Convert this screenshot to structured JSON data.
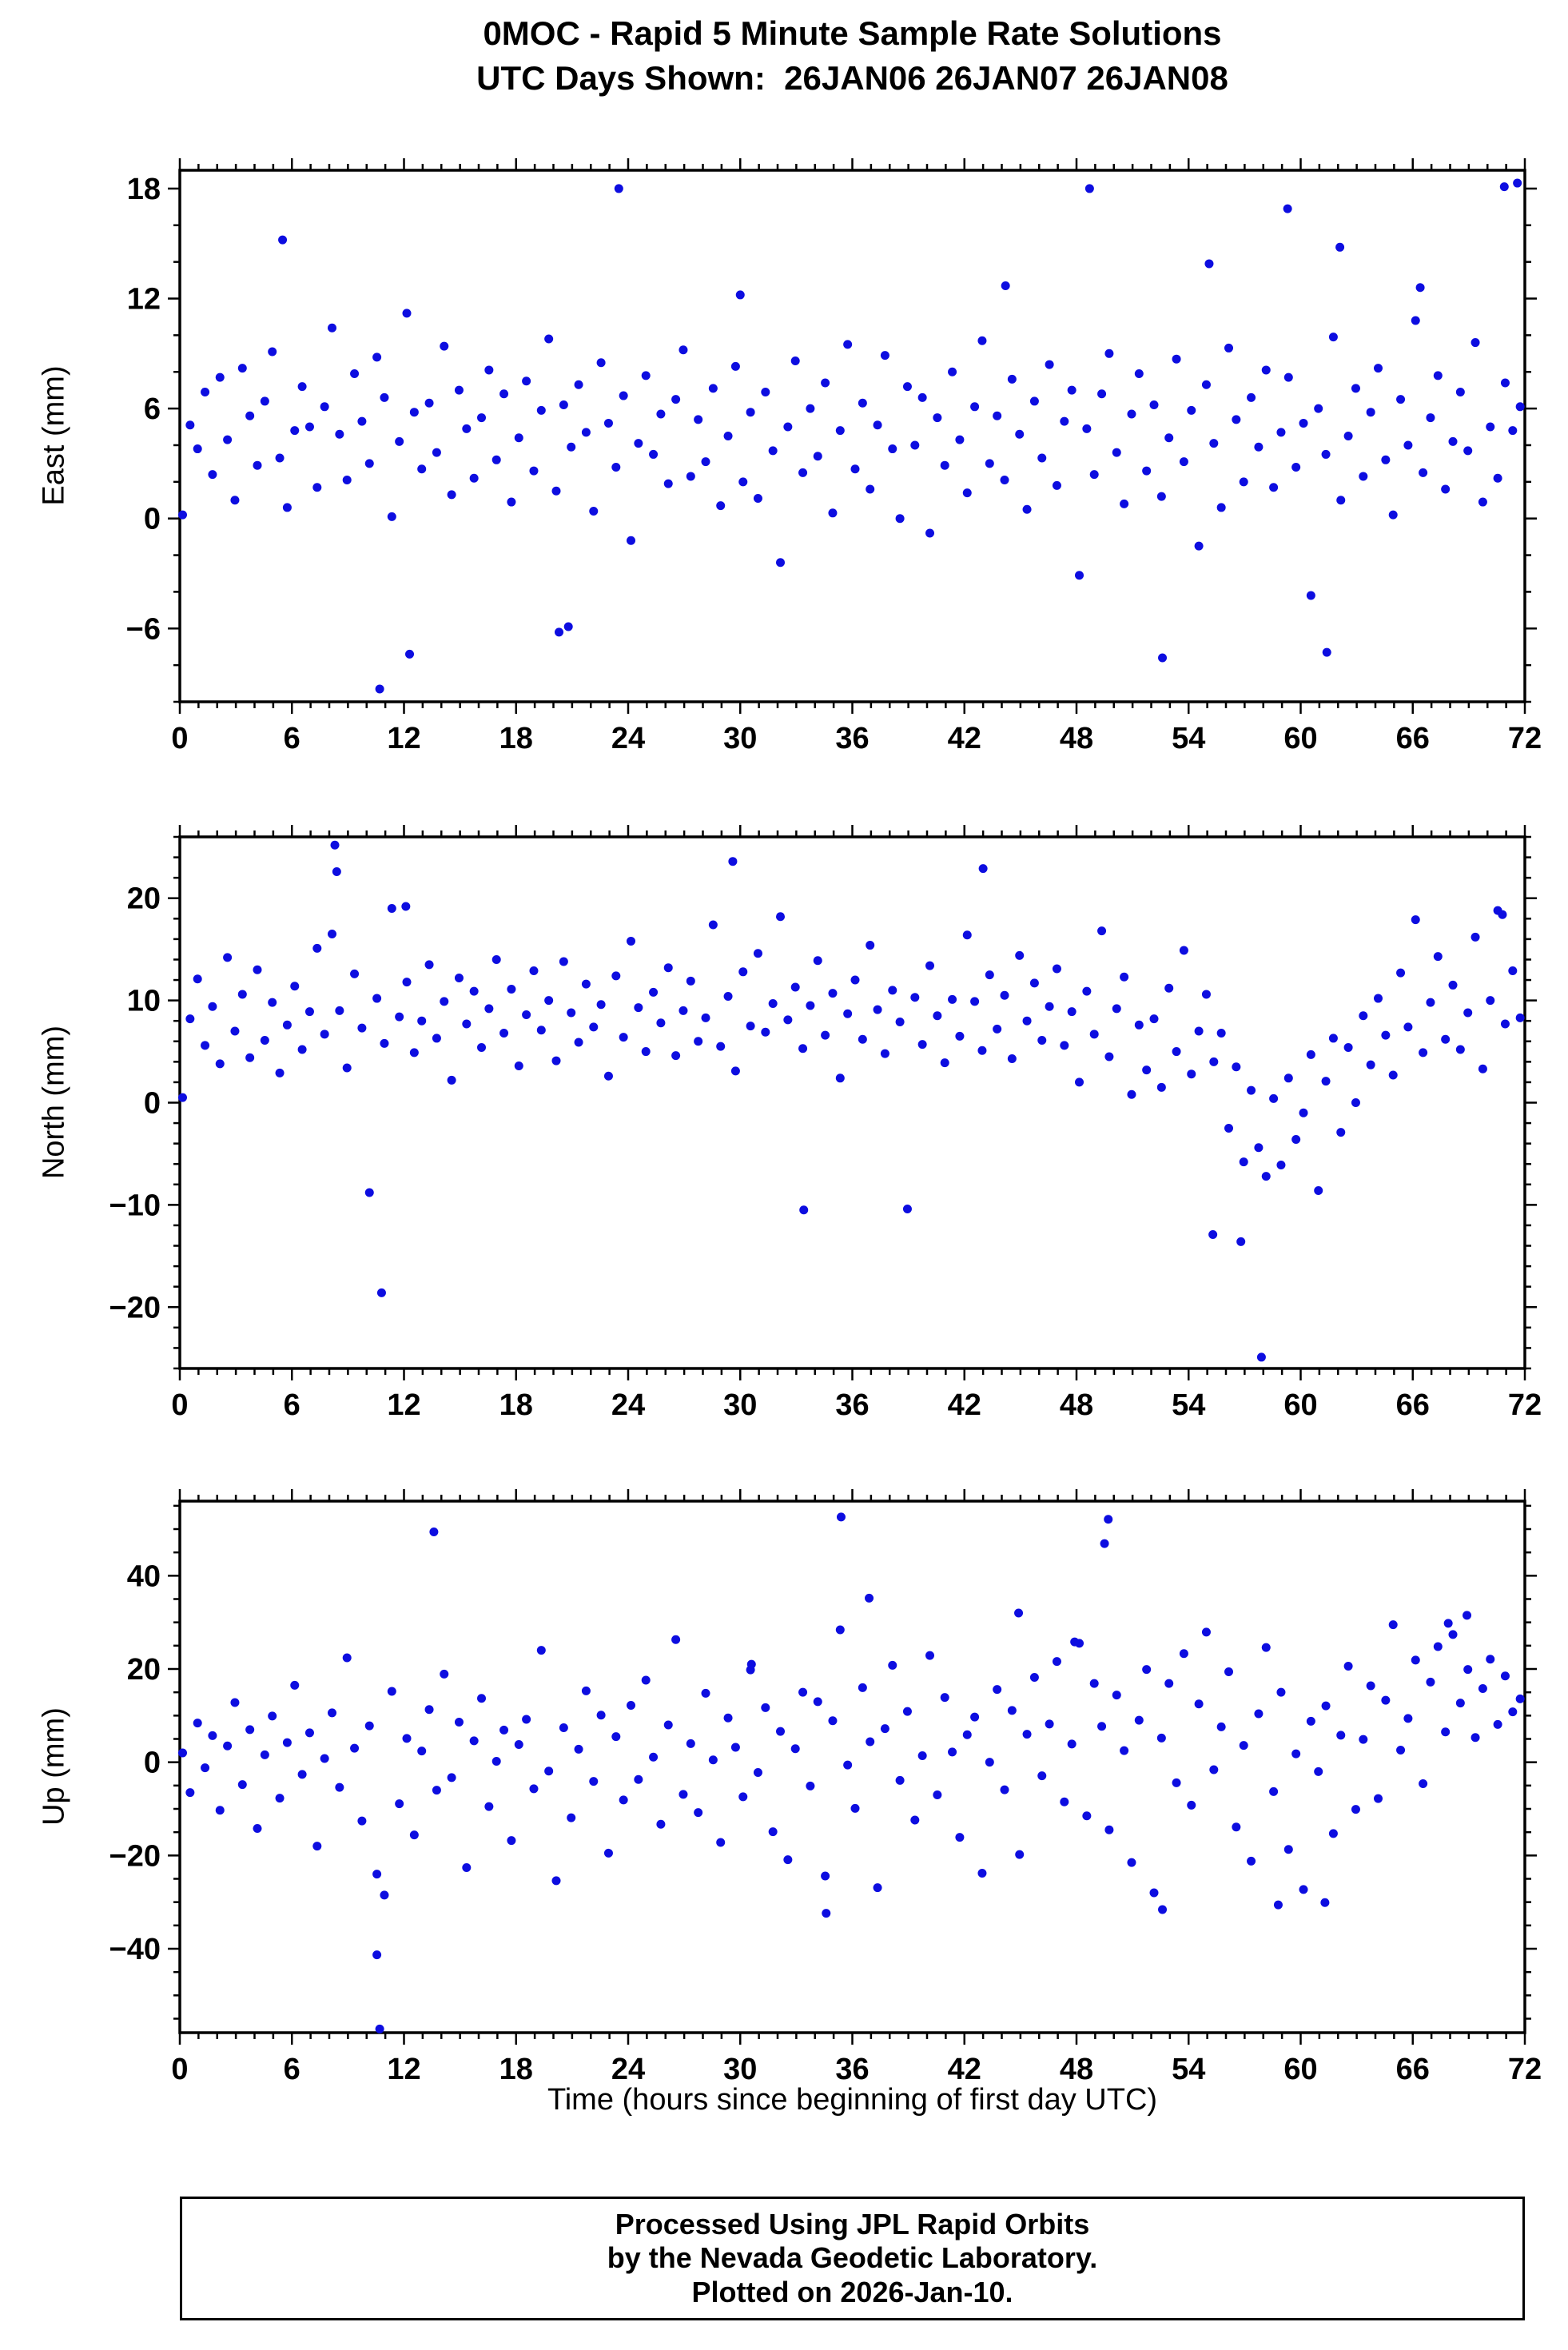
{
  "title": {
    "line1": "0MOC - Rapid 5 Minute Sample Rate Solutions",
    "line2": "UTC Days Shown:  26JAN06 26JAN07 26JAN08"
  },
  "footer": {
    "line1": "Processed Using JPL Rapid Orbits",
    "line2": "by the Nevada Geodetic Laboratory.",
    "line3": "Plotted on 2026-Jan-10."
  },
  "colors": {
    "point": "#0d0de0",
    "axis": "#000000",
    "background": "#ffffff"
  },
  "x_axis": {
    "label": "Time (hours since beginning of first day UTC)",
    "lim": [
      0,
      72
    ],
    "tick_major": 6,
    "tick_minor": 1,
    "ticks": [
      0,
      6,
      12,
      18,
      24,
      30,
      36,
      42,
      48,
      54,
      60,
      66,
      72
    ]
  },
  "chart_data": [
    {
      "type": "scatter",
      "name": "East",
      "ylabel": "East (mm)",
      "ylim": [
        -10,
        19
      ],
      "ytick_major": 6,
      "ytick_minor": 2,
      "yticks": [
        -6,
        0,
        6,
        12,
        18
      ],
      "x_start": 0.15,
      "x_step": 0.4,
      "y": [
        0.2,
        5.1,
        3.8,
        6.9,
        2.4,
        7.7,
        4.3,
        1.0,
        8.2,
        5.6,
        2.9,
        6.4,
        9.1,
        3.3,
        0.6,
        4.8,
        7.2,
        5.0,
        1.7,
        6.1,
        10.4,
        4.6,
        2.1,
        7.9,
        5.3,
        3.0,
        8.8,
        6.6,
        0.1,
        4.2,
        11.2,
        5.8,
        2.7,
        6.3,
        3.6,
        9.4,
        1.3,
        7.0,
        4.9,
        2.2,
        5.5,
        8.1,
        3.2,
        6.8,
        0.9,
        4.4,
        7.5,
        2.6,
        5.9,
        9.8,
        1.5,
        6.2,
        3.9,
        7.3,
        4.7,
        0.4,
        8.5,
        5.2,
        2.8,
        6.7,
        -1.2,
        4.1,
        7.8,
        3.5,
        5.7,
        1.9,
        6.5,
        9.2,
        2.3,
        5.4,
        3.1,
        7.1,
        0.7,
        4.5,
        8.3,
        2.0,
        5.8,
        1.1,
        6.9,
        3.7,
        -2.4,
        5.0,
        8.6,
        2.5,
        6.0,
        3.4,
        7.4,
        0.3,
        4.8,
        9.5,
        2.7,
        6.3,
        1.6,
        5.1,
        8.9,
        3.8,
        0.0,
        7.2,
        4.0,
        6.6,
        -0.8,
        5.5,
        2.9,
        8.0,
        4.3,
        1.4,
        6.1,
        9.7,
        3.0,
        5.6,
        2.1,
        7.6,
        4.6,
        0.5,
        6.4,
        3.3,
        8.4,
        1.8,
        5.3,
        7.0,
        -3.1,
        4.9,
        2.4,
        6.8,
        9.0,
        3.6,
        0.8,
        5.7,
        7.9,
        2.6,
        6.2,
        1.2,
        4.4,
        8.7,
        3.1,
        5.9,
        -1.5,
        7.3,
        4.1,
        0.6,
        9.3,
        5.4,
        2.0,
        6.6,
        3.9,
        8.1,
        1.7,
        4.7,
        7.7,
        2.8,
        5.2,
        -4.2,
        6.0,
        3.5,
        9.9,
        1.0,
        4.5,
        7.1,
        2.3,
        5.8,
        8.2,
        3.2,
        0.2,
        6.5,
        4.0,
        10.8,
        2.5,
        5.5,
        7.8,
        1.6,
        4.2,
        6.9,
        3.7,
        9.6,
        0.9,
        5.0,
        2.2,
        7.4,
        4.8,
        6.1
      ],
      "extra_points": [
        [
          5.5,
          15.2
        ],
        [
          23.5,
          18.0
        ],
        [
          30.0,
          12.2
        ],
        [
          10.7,
          -9.3
        ],
        [
          12.3,
          -7.4
        ],
        [
          20.3,
          -6.2
        ],
        [
          20.8,
          -5.9
        ],
        [
          48.7,
          18.0
        ],
        [
          55.1,
          13.9
        ],
        [
          59.3,
          16.9
        ],
        [
          52.6,
          -7.6
        ],
        [
          61.4,
          -7.3
        ],
        [
          70.9,
          18.1
        ],
        [
          71.6,
          18.3
        ],
        [
          62.1,
          14.8
        ],
        [
          66.4,
          12.6
        ],
        [
          44.2,
          12.7
        ]
      ]
    },
    {
      "type": "scatter",
      "name": "North",
      "ylabel": "North (mm)",
      "ylim": [
        -26,
        26
      ],
      "ytick_major": 10,
      "ytick_minor": 2,
      "yticks": [
        -20,
        -10,
        0,
        10,
        20
      ],
      "x_start": 0.15,
      "x_step": 0.4,
      "y": [
        0.5,
        8.2,
        12.1,
        5.6,
        9.4,
        3.8,
        14.2,
        7.0,
        10.6,
        4.4,
        13.0,
        6.1,
        9.8,
        2.9,
        7.6,
        11.4,
        5.2,
        8.9,
        15.1,
        6.7,
        16.5,
        9.0,
        3.4,
        12.6,
        7.3,
        -8.8,
        10.2,
        5.8,
        19.0,
        8.4,
        11.8,
        4.9,
        8.0,
        13.5,
        6.3,
        9.9,
        2.2,
        12.2,
        7.7,
        10.9,
        5.4,
        9.2,
        14.0,
        6.8,
        11.1,
        3.6,
        8.6,
        12.9,
        7.1,
        10.0,
        4.1,
        13.8,
        8.8,
        5.9,
        11.6,
        7.4,
        9.6,
        2.6,
        12.4,
        6.4,
        15.8,
        9.3,
        5.0,
        10.8,
        7.8,
        13.2,
        4.6,
        9.0,
        11.9,
        6.0,
        8.3,
        17.4,
        5.5,
        10.4,
        3.1,
        12.8,
        7.5,
        14.6,
        6.9,
        9.7,
        18.2,
        8.1,
        11.3,
        5.3,
        9.5,
        13.9,
        6.6,
        10.7,
        2.4,
        8.7,
        12.0,
        6.2,
        15.4,
        9.1,
        4.8,
        11.0,
        7.9,
        -10.4,
        10.3,
        5.7,
        13.4,
        8.5,
        3.9,
        10.1,
        6.5,
        16.4,
        9.9,
        5.1,
        12.5,
        7.2,
        10.5,
        4.3,
        14.4,
        8.0,
        11.7,
        6.1,
        9.4,
        13.1,
        5.6,
        8.9,
        2.0,
        10.9,
        6.7,
        16.8,
        4.5,
        9.2,
        12.3,
        0.8,
        7.6,
        3.2,
        8.2,
        1.5,
        11.2,
        5.0,
        14.9,
        2.8,
        7.0,
        10.6,
        4.0,
        6.8,
        -2.5,
        3.5,
        -5.8,
        1.2,
        -4.4,
        -7.2,
        0.4,
        -6.1,
        2.4,
        -3.6,
        -1.0,
        4.7,
        -8.6,
        2.1,
        6.3,
        -2.9,
        5.4,
        0.0,
        8.5,
        3.7,
        10.2,
        6.6,
        2.7,
        12.7,
        7.4,
        17.9,
        4.9,
        9.8,
        14.3,
        6.2,
        11.5,
        5.2,
        8.8,
        16.2,
        3.3,
        10.0,
        18.8,
        7.7,
        12.9,
        8.3
      ],
      "extra_points": [
        [
          8.3,
          25.2
        ],
        [
          8.4,
          22.6
        ],
        [
          10.8,
          -18.6
        ],
        [
          29.6,
          23.6
        ],
        [
          33.4,
          -10.5
        ],
        [
          43.0,
          22.9
        ],
        [
          55.3,
          -12.9
        ],
        [
          56.8,
          -13.6
        ],
        [
          57.9,
          -24.9
        ],
        [
          12.1,
          19.2
        ],
        [
          70.8,
          18.4
        ]
      ]
    },
    {
      "type": "scatter",
      "name": "Up",
      "ylabel": "Up (mm)",
      "ylim": [
        -58,
        56
      ],
      "ytick_major": 20,
      "ytick_minor": 5,
      "yticks": [
        -40,
        -20,
        0,
        20,
        40
      ],
      "x_start": 0.15,
      "x_step": 0.4,
      "y": [
        2.0,
        -6.5,
        8.4,
        -1.2,
        5.7,
        -10.3,
        3.5,
        12.8,
        -4.8,
        7.0,
        -14.2,
        1.6,
        9.9,
        -7.7,
        4.2,
        16.5,
        -2.6,
        6.3,
        -18.0,
        0.8,
        10.6,
        -5.4,
        22.4,
        3.0,
        -12.6,
        7.8,
        -24.0,
        -28.5,
        15.2,
        -8.9,
        5.1,
        -15.6,
        2.4,
        11.3,
        -6.0,
        18.9,
        -3.3,
        8.6,
        -22.6,
        4.6,
        13.7,
        -9.5,
        0.2,
        6.9,
        -16.8,
        3.8,
        9.2,
        -5.7,
        24.0,
        -1.9,
        -25.4,
        7.4,
        -11.9,
        2.8,
        15.3,
        -4.1,
        10.1,
        -19.5,
        5.5,
        -8.1,
        12.2,
        -3.7,
        17.6,
        1.1,
        -13.3,
        8.0,
        26.3,
        -6.9,
        4.0,
        -10.8,
        14.8,
        0.5,
        -17.2,
        9.5,
        3.2,
        -7.4,
        19.8,
        -2.2,
        11.7,
        -14.9,
        6.6,
        -20.9,
        2.9,
        15.0,
        -5.1,
        13.0,
        -24.4,
        8.9,
        28.4,
        -0.6,
        -9.9,
        16.0,
        4.4,
        -26.9,
        7.2,
        20.8,
        -3.9,
        10.9,
        -12.4,
        1.4,
        22.9,
        -7.0,
        13.9,
        2.2,
        -16.1,
        5.9,
        9.7,
        -23.8,
        0.0,
        15.6,
        -5.9,
        11.1,
        -19.8,
        6.0,
        18.2,
        -2.9,
        8.2,
        21.6,
        -8.5,
        3.9,
        25.5,
        -11.5,
        16.9,
        7.7,
        -14.5,
        14.4,
        2.5,
        -21.5,
        9.0,
        19.9,
        -28.0,
        5.2,
        16.9,
        -4.4,
        23.3,
        -9.2,
        12.5,
        27.9,
        -1.6,
        7.6,
        19.4,
        -13.9,
        3.6,
        -21.2,
        10.4,
        24.6,
        -6.3,
        15.0,
        -18.7,
        1.8,
        -27.3,
        8.8,
        -2.0,
        12.1,
        -15.3,
        5.8,
        20.6,
        -10.1,
        4.9,
        16.4,
        -7.8,
        13.3,
        29.5,
        2.6,
        9.4,
        21.9,
        -4.6,
        17.2,
        24.8,
        6.5,
        27.4,
        12.7,
        19.9,
        5.3,
        15.8,
        22.1,
        8.1,
        18.5,
        10.8,
        13.6
      ],
      "extra_points": [
        [
          35.4,
          52.6
        ],
        [
          49.7,
          52.1
        ],
        [
          49.5,
          46.9
        ],
        [
          13.6,
          49.4
        ],
        [
          10.55,
          -41.3
        ],
        [
          10.7,
          -57.2
        ],
        [
          34.6,
          -32.4
        ],
        [
          52.6,
          -31.6
        ],
        [
          58.8,
          -30.6
        ],
        [
          61.3,
          -30.1
        ],
        [
          36.9,
          35.2
        ],
        [
          30.6,
          21.0
        ],
        [
          44.9,
          32.0
        ],
        [
          47.9,
          25.8
        ],
        [
          68.9,
          31.5
        ],
        [
          67.9,
          29.8
        ]
      ]
    }
  ]
}
